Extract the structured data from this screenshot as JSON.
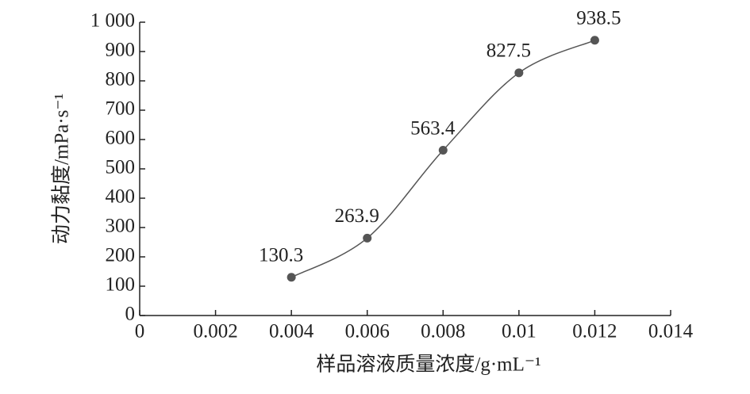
{
  "chart_data": {
    "type": "line",
    "xlabel": "样品溶液质量浓度/g·mL⁻¹",
    "ylabel": "动力黏度/mPa·s⁻¹",
    "x": [
      0.004,
      0.006,
      0.008,
      0.01,
      0.012
    ],
    "values": [
      130.3,
      263.9,
      563.4,
      827.5,
      938.5
    ],
    "color": "#555555",
    "xlim": [
      0,
      0.014
    ],
    "xticks": [
      0,
      0.002,
      0.004,
      0.006,
      0.008,
      0.01,
      0.012,
      0.014
    ],
    "ylim": [
      0,
      1000
    ],
    "yticks": [
      0,
      100,
      200,
      300,
      400,
      500,
      600,
      700,
      800,
      900,
      {
        "value": 1000,
        "label": "1 000"
      }
    ],
    "smooth": true
  }
}
